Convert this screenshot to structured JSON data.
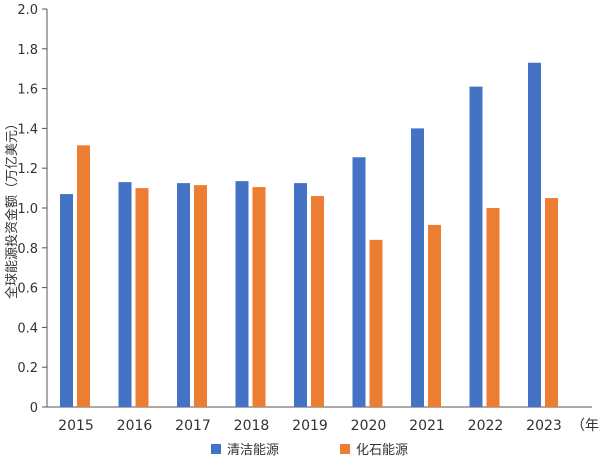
{
  "chart_data": {
    "type": "bar",
    "ylabel": "全球能源投资金额（万亿美元）",
    "xlabel_unit": "（年）",
    "ylim": [
      0,
      2.0
    ],
    "yticks": [
      "0",
      "0.2",
      "0.4",
      "0.6",
      "0.8",
      "1.0",
      "1.2",
      "1.4",
      "1.6",
      "1.8",
      "2.0"
    ],
    "categories": [
      "2015",
      "2016",
      "2017",
      "2018",
      "2019",
      "2020",
      "2021",
      "2022",
      "2023"
    ],
    "grid": false,
    "legend_position": "bottom",
    "series": [
      {
        "name": "清洁能源",
        "color": "#4472c4",
        "values": [
          1.07,
          1.13,
          1.125,
          1.135,
          1.125,
          1.255,
          1.4,
          1.61,
          1.73
        ]
      },
      {
        "name": "化石能源",
        "color": "#ed7d31",
        "values": [
          1.315,
          1.1,
          1.115,
          1.105,
          1.06,
          0.84,
          0.915,
          1.0,
          1.05
        ]
      }
    ]
  }
}
